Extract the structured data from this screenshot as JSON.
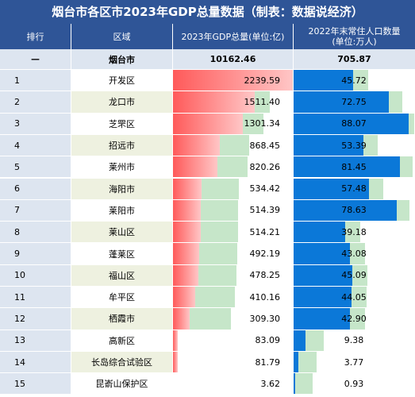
{
  "title": "烟台市各区市2023年GDP总量数据（制表：数据说经济）",
  "headers": {
    "rank": "排行",
    "region": "区域",
    "gdp": "2023年GDP总量(单位:亿)",
    "pop_line1": "2022年末常住人口数量",
    "pop_line2": "(单位:万人)"
  },
  "total": {
    "rank": "—",
    "region": "烟台市",
    "gdp": "10162.46",
    "pop": "705.87"
  },
  "rows": [
    {
      "rank": "1",
      "region": "开发区",
      "gdp": "2239.59",
      "pop": "45.72"
    },
    {
      "rank": "2",
      "region": "龙口市",
      "gdp": "1511.40",
      "pop": "72.75"
    },
    {
      "rank": "3",
      "region": "芝罘区",
      "gdp": "1301.34",
      "pop": "88.07"
    },
    {
      "rank": "4",
      "region": "招远市",
      "gdp": "868.45",
      "pop": "53.39"
    },
    {
      "rank": "5",
      "region": "莱州市",
      "gdp": "820.26",
      "pop": "81.45"
    },
    {
      "rank": "6",
      "region": "海阳市",
      "gdp": "534.42",
      "pop": "57.48"
    },
    {
      "rank": "7",
      "region": "莱阳市",
      "gdp": "514.39",
      "pop": "78.63"
    },
    {
      "rank": "8",
      "region": "莱山区",
      "gdp": "514.21",
      "pop": "39.18"
    },
    {
      "rank": "9",
      "region": "蓬莱区",
      "gdp": "492.19",
      "pop": "43.08"
    },
    {
      "rank": "10",
      "region": "福山区",
      "gdp": "478.25",
      "pop": "45.09"
    },
    {
      "rank": "11",
      "region": "牟平区",
      "gdp": "410.16",
      "pop": "44.05"
    },
    {
      "rank": "12",
      "region": "栖霞市",
      "gdp": "309.30",
      "pop": "42.90"
    },
    {
      "rank": "13",
      "region": "高新区",
      "gdp": "83.09",
      "pop": "9.38"
    },
    {
      "rank": "14",
      "region": "长岛综合试验区",
      "gdp": "81.79",
      "pop": "3.77"
    },
    {
      "rank": "15",
      "region": "昆嵛山保护区",
      "gdp": "3.62",
      "pop": "0.93"
    }
  ],
  "colors": {
    "header_bg": "#2f5597",
    "rank_bg": "#dde5f0",
    "region_bg_odd": "#ffffff",
    "region_bg_even": "#eef1e0",
    "gdp_bar": "#ff5a5a",
    "gdp_bg": "#c6e6c9",
    "pop_bar": "#0b78d8",
    "pop_bg": "#c6e6c9"
  }
}
